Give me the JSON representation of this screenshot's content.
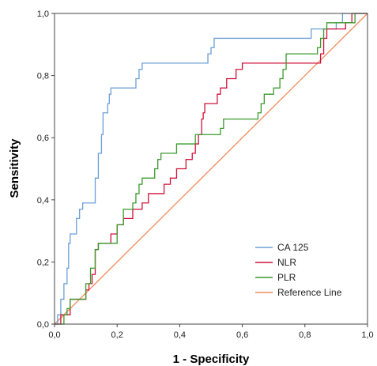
{
  "chart_data": {
    "type": "line",
    "xlabel": "1 - Specificity",
    "ylabel": "Sensitivity",
    "xlim": [
      0,
      1
    ],
    "ylim": [
      0,
      1
    ],
    "x_ticks": [
      "0,0",
      "0,2",
      "0,4",
      "0,6",
      "0,8",
      "1,0"
    ],
    "y_ticks": [
      "0,0",
      "0,2",
      "0,4",
      "0,6",
      "0,8",
      "1,0"
    ],
    "grid": false,
    "legend_position": "bottom-right",
    "series": [
      {
        "name": "CA 125",
        "color": "#6a9fd8",
        "points": [
          [
            0,
            0
          ],
          [
            0.01,
            0
          ],
          [
            0.01,
            0.03
          ],
          [
            0.02,
            0.03
          ],
          [
            0.02,
            0.08
          ],
          [
            0.03,
            0.08
          ],
          [
            0.03,
            0.13
          ],
          [
            0.04,
            0.13
          ],
          [
            0.04,
            0.18
          ],
          [
            0.045,
            0.18
          ],
          [
            0.045,
            0.26
          ],
          [
            0.05,
            0.26
          ],
          [
            0.05,
            0.29
          ],
          [
            0.07,
            0.29
          ],
          [
            0.07,
            0.34
          ],
          [
            0.08,
            0.34
          ],
          [
            0.08,
            0.37
          ],
          [
            0.09,
            0.37
          ],
          [
            0.09,
            0.39
          ],
          [
            0.13,
            0.39
          ],
          [
            0.13,
            0.47
          ],
          [
            0.14,
            0.47
          ],
          [
            0.14,
            0.55
          ],
          [
            0.15,
            0.55
          ],
          [
            0.15,
            0.61
          ],
          [
            0.155,
            0.61
          ],
          [
            0.155,
            0.68
          ],
          [
            0.17,
            0.68
          ],
          [
            0.17,
            0.71
          ],
          [
            0.175,
            0.71
          ],
          [
            0.175,
            0.74
          ],
          [
            0.18,
            0.74
          ],
          [
            0.18,
            0.76
          ],
          [
            0.26,
            0.76
          ],
          [
            0.26,
            0.79
          ],
          [
            0.27,
            0.79
          ],
          [
            0.27,
            0.82
          ],
          [
            0.28,
            0.82
          ],
          [
            0.28,
            0.84
          ],
          [
            0.49,
            0.84
          ],
          [
            0.49,
            0.87
          ],
          [
            0.5,
            0.87
          ],
          [
            0.5,
            0.89
          ],
          [
            0.51,
            0.89
          ],
          [
            0.51,
            0.92
          ],
          [
            0.82,
            0.92
          ],
          [
            0.82,
            0.95
          ],
          [
            0.9,
            0.95
          ],
          [
            0.9,
            0.97
          ],
          [
            0.92,
            0.97
          ],
          [
            0.92,
            1.0
          ],
          [
            1.0,
            1.0
          ]
        ]
      },
      {
        "name": "NLR",
        "color": "#d0103a",
        "points": [
          [
            0,
            0
          ],
          [
            0.02,
            0
          ],
          [
            0.02,
            0.03
          ],
          [
            0.05,
            0.03
          ],
          [
            0.05,
            0.08
          ],
          [
            0.1,
            0.08
          ],
          [
            0.1,
            0.11
          ],
          [
            0.11,
            0.11
          ],
          [
            0.11,
            0.13
          ],
          [
            0.12,
            0.13
          ],
          [
            0.12,
            0.16
          ],
          [
            0.13,
            0.16
          ],
          [
            0.13,
            0.24
          ],
          [
            0.14,
            0.24
          ],
          [
            0.14,
            0.26
          ],
          [
            0.18,
            0.26
          ],
          [
            0.18,
            0.29
          ],
          [
            0.2,
            0.29
          ],
          [
            0.2,
            0.32
          ],
          [
            0.22,
            0.32
          ],
          [
            0.22,
            0.34
          ],
          [
            0.25,
            0.34
          ],
          [
            0.25,
            0.37
          ],
          [
            0.28,
            0.37
          ],
          [
            0.28,
            0.39
          ],
          [
            0.3,
            0.39
          ],
          [
            0.3,
            0.42
          ],
          [
            0.35,
            0.42
          ],
          [
            0.35,
            0.45
          ],
          [
            0.37,
            0.45
          ],
          [
            0.37,
            0.47
          ],
          [
            0.39,
            0.47
          ],
          [
            0.39,
            0.5
          ],
          [
            0.42,
            0.5
          ],
          [
            0.42,
            0.53
          ],
          [
            0.44,
            0.53
          ],
          [
            0.44,
            0.55
          ],
          [
            0.45,
            0.55
          ],
          [
            0.45,
            0.58
          ],
          [
            0.46,
            0.58
          ],
          [
            0.46,
            0.61
          ],
          [
            0.47,
            0.61
          ],
          [
            0.47,
            0.66
          ],
          [
            0.475,
            0.66
          ],
          [
            0.475,
            0.68
          ],
          [
            0.48,
            0.68
          ],
          [
            0.48,
            0.71
          ],
          [
            0.52,
            0.71
          ],
          [
            0.52,
            0.74
          ],
          [
            0.53,
            0.74
          ],
          [
            0.53,
            0.76
          ],
          [
            0.55,
            0.76
          ],
          [
            0.55,
            0.79
          ],
          [
            0.58,
            0.79
          ],
          [
            0.58,
            0.82
          ],
          [
            0.6,
            0.82
          ],
          [
            0.6,
            0.84
          ],
          [
            0.85,
            0.84
          ],
          [
            0.85,
            0.87
          ],
          [
            0.86,
            0.87
          ],
          [
            0.86,
            0.92
          ],
          [
            0.87,
            0.92
          ],
          [
            0.87,
            0.95
          ],
          [
            0.93,
            0.95
          ],
          [
            0.93,
            0.97
          ],
          [
            0.95,
            0.97
          ],
          [
            0.95,
            1.0
          ],
          [
            1.0,
            1.0
          ]
        ]
      },
      {
        "name": "PLR",
        "color": "#3a9a2c",
        "points": [
          [
            0,
            0
          ],
          [
            0.03,
            0
          ],
          [
            0.03,
            0.03
          ],
          [
            0.04,
            0.03
          ],
          [
            0.04,
            0.05
          ],
          [
            0.05,
            0.05
          ],
          [
            0.05,
            0.08
          ],
          [
            0.1,
            0.08
          ],
          [
            0.1,
            0.13
          ],
          [
            0.115,
            0.13
          ],
          [
            0.115,
            0.18
          ],
          [
            0.13,
            0.18
          ],
          [
            0.13,
            0.24
          ],
          [
            0.14,
            0.24
          ],
          [
            0.14,
            0.26
          ],
          [
            0.2,
            0.26
          ],
          [
            0.2,
            0.32
          ],
          [
            0.22,
            0.32
          ],
          [
            0.22,
            0.37
          ],
          [
            0.25,
            0.37
          ],
          [
            0.25,
            0.39
          ],
          [
            0.26,
            0.39
          ],
          [
            0.26,
            0.42
          ],
          [
            0.27,
            0.42
          ],
          [
            0.27,
            0.45
          ],
          [
            0.28,
            0.45
          ],
          [
            0.28,
            0.47
          ],
          [
            0.32,
            0.47
          ],
          [
            0.32,
            0.5
          ],
          [
            0.33,
            0.5
          ],
          [
            0.33,
            0.53
          ],
          [
            0.34,
            0.53
          ],
          [
            0.34,
            0.55
          ],
          [
            0.39,
            0.55
          ],
          [
            0.39,
            0.58
          ],
          [
            0.45,
            0.58
          ],
          [
            0.45,
            0.61
          ],
          [
            0.53,
            0.61
          ],
          [
            0.53,
            0.63
          ],
          [
            0.54,
            0.63
          ],
          [
            0.54,
            0.66
          ],
          [
            0.65,
            0.66
          ],
          [
            0.65,
            0.68
          ],
          [
            0.66,
            0.68
          ],
          [
            0.66,
            0.71
          ],
          [
            0.67,
            0.71
          ],
          [
            0.67,
            0.74
          ],
          [
            0.7,
            0.74
          ],
          [
            0.7,
            0.76
          ],
          [
            0.72,
            0.76
          ],
          [
            0.72,
            0.79
          ],
          [
            0.73,
            0.79
          ],
          [
            0.73,
            0.82
          ],
          [
            0.74,
            0.82
          ],
          [
            0.74,
            0.87
          ],
          [
            0.84,
            0.87
          ],
          [
            0.84,
            0.89
          ],
          [
            0.85,
            0.89
          ],
          [
            0.85,
            0.92
          ],
          [
            0.86,
            0.92
          ],
          [
            0.86,
            0.95
          ],
          [
            0.87,
            0.95
          ],
          [
            0.87,
            0.97
          ],
          [
            0.96,
            0.97
          ],
          [
            0.96,
            1.0
          ],
          [
            1.0,
            1.0
          ]
        ]
      },
      {
        "name": "Reference Line",
        "color": "#f08c5a",
        "points": [
          [
            0,
            0
          ],
          [
            1,
            1
          ]
        ]
      }
    ]
  }
}
